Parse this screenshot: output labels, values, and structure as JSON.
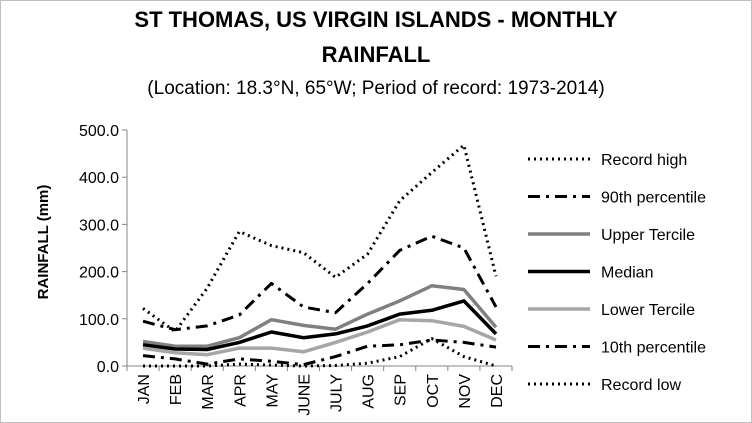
{
  "chart_data": {
    "type": "line",
    "title_line1": "ST THOMAS, US VIRGIN ISLANDS - MONTHLY",
    "title_line2": "RAINFALL",
    "subtitle": "(Location: 18.3°N, 65°W; Period of record: 1973-2014)",
    "xlabel": "",
    "ylabel": "RAINFALL (mm)",
    "ylim": [
      0,
      500
    ],
    "yticks": [
      "0.0",
      "100.0",
      "200.0",
      "300.0",
      "400.0",
      "500.0"
    ],
    "categories": [
      "JAN",
      "FEB",
      "MAR",
      "APR",
      "MAY",
      "JUNE",
      "JULY",
      "AUG",
      "SEP",
      "OCT",
      "NOV",
      "DEC"
    ],
    "legend_position": "right",
    "grid": false,
    "series": [
      {
        "name": "Record high",
        "style": "dotted",
        "color": "#000000",
        "values": [
          122,
          73,
          165,
          285,
          255,
          240,
          188,
          237,
          350,
          410,
          468,
          190
        ]
      },
      {
        "name": "90th percentile",
        "style": "dashdot",
        "color": "#000000",
        "values": [
          95,
          77,
          85,
          108,
          175,
          125,
          113,
          175,
          245,
          275,
          250,
          125
        ]
      },
      {
        "name": "Upper Tercile",
        "style": "solid",
        "color": "#808080",
        "values": [
          52,
          42,
          42,
          60,
          98,
          86,
          78,
          110,
          138,
          170,
          162,
          82
        ]
      },
      {
        "name": "Median",
        "style": "solid",
        "color": "#000000",
        "values": [
          45,
          36,
          35,
          50,
          72,
          60,
          68,
          85,
          110,
          118,
          138,
          68
        ]
      },
      {
        "name": "Lower Tercile",
        "style": "solid",
        "color": "#a6a6a6",
        "values": [
          38,
          28,
          24,
          38,
          38,
          30,
          50,
          72,
          98,
          96,
          84,
          55
        ]
      },
      {
        "name": "10th percentile",
        "style": "dashdot",
        "color": "#000000",
        "values": [
          22,
          15,
          4,
          15,
          10,
          3,
          20,
          42,
          45,
          55,
          50,
          40
        ]
      },
      {
        "name": "Record low",
        "style": "dotted",
        "color": "#000000",
        "values": [
          0,
          0,
          0,
          4,
          2,
          0,
          1,
          6,
          20,
          58,
          20,
          0
        ]
      }
    ]
  }
}
